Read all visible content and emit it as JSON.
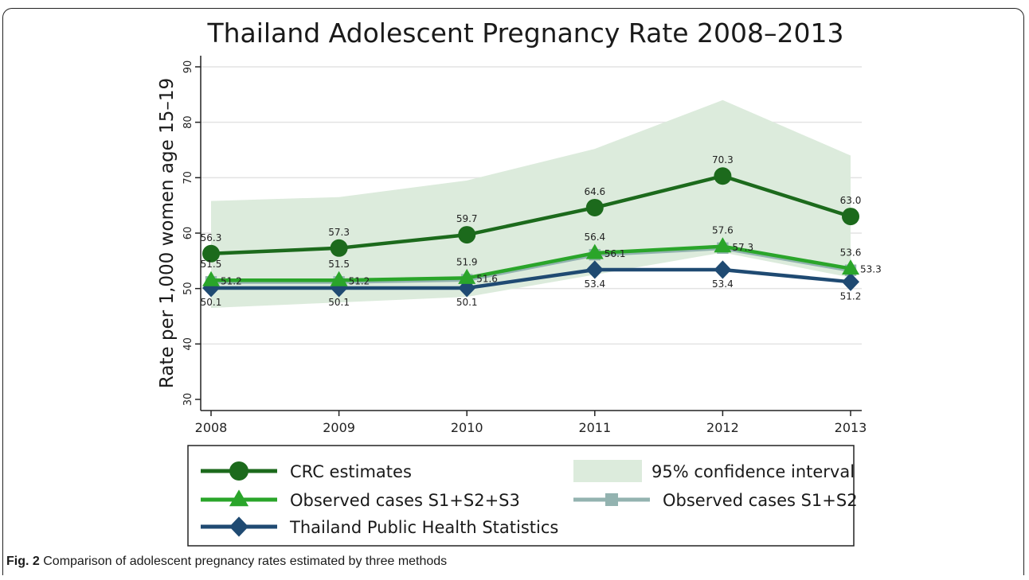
{
  "caption": {
    "label": "Fig. 2",
    "text": "Comparison of adolescent pregnancy rates estimated by three methods"
  },
  "chart_data": {
    "type": "line",
    "title": "Thailand Adolescent Pregnancy Rate 2008–2013",
    "xlabel": "",
    "ylabel": "Rate per 1,000 women age 15–19",
    "x": [
      2008,
      2009,
      2010,
      2011,
      2012,
      2013
    ],
    "x_tick_labels": [
      "2008",
      "2009",
      "2010",
      "2011",
      "2012",
      "2013"
    ],
    "ylim": [
      30,
      90
    ],
    "y_ticks": [
      30,
      40,
      50,
      60,
      70,
      80,
      90
    ],
    "y_tick_labels": [
      "30",
      "40",
      "50",
      "60",
      "70",
      "80",
      "90"
    ],
    "grid": true,
    "legend_position": "bottom",
    "series": [
      {
        "name": "CRC estimates",
        "marker": "circle",
        "color": "#1c6a1c",
        "values": [
          56.3,
          57.3,
          59.7,
          64.6,
          70.3,
          63.0
        ],
        "labels": [
          "56.3",
          "57.3",
          "59.7",
          "64.6",
          "70.3",
          "63.0"
        ]
      },
      {
        "name": "Observed cases S1+S2+S3",
        "marker": "triangle",
        "color": "#2aa52a",
        "values": [
          51.5,
          51.5,
          51.9,
          56.4,
          57.6,
          53.6
        ],
        "labels": [
          "51.5",
          "51.5",
          "51.9",
          "56.4",
          "57.6",
          "53.6"
        ]
      },
      {
        "name": "Observed cases S1+S2",
        "marker": "square",
        "color": "#93b3b0",
        "values": [
          51.2,
          51.2,
          51.6,
          56.1,
          57.3,
          53.3
        ],
        "labels": [
          "51.2",
          "51.2",
          "51.6",
          "56.1",
          "57.3",
          "53.3"
        ]
      },
      {
        "name": "Thailand Public Health Statistics",
        "marker": "diamond",
        "color": "#1f4a72",
        "values": [
          50.1,
          50.1,
          50.1,
          53.4,
          53.4,
          51.2
        ],
        "labels": [
          "50.1",
          "50.1",
          "50.1",
          "53.4",
          "53.4",
          "51.2"
        ]
      }
    ],
    "confidence_band": {
      "name": "95% confidence interval",
      "color": "#dcebdc",
      "upper": [
        65.8,
        66.5,
        69.5,
        75.2,
        84.0,
        74.0
      ],
      "lower": [
        46.5,
        47.5,
        48.5,
        52.5,
        56.5,
        52.0
      ]
    },
    "legend": [
      "CRC estimates",
      "95% confidence interval",
      "Observed cases S1+S2+S3",
      "Observed cases S1+S2",
      "Thailand Public Health Statistics"
    ]
  }
}
